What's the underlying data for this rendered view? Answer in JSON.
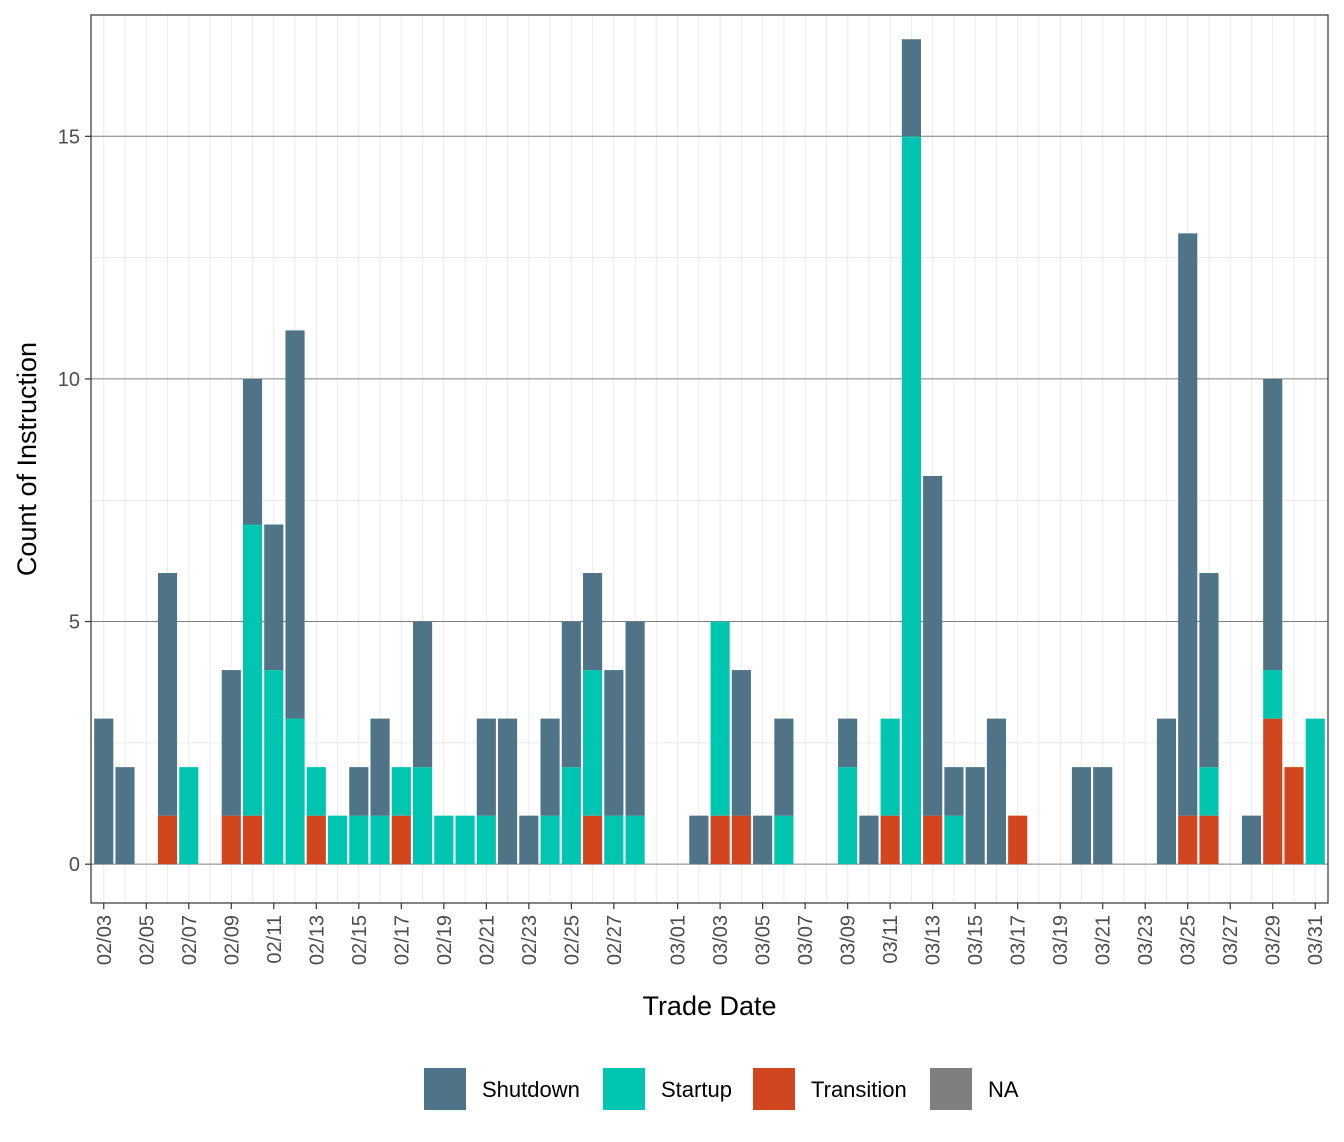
{
  "chart_data": {
    "type": "bar",
    "stacked": true,
    "xlabel": "Trade Date",
    "ylabel": "Count of Instruction",
    "ylim": [
      -0.8,
      17.5
    ],
    "y_ticks": [
      0,
      5,
      10,
      15
    ],
    "grid": true,
    "legend_position": "bottom",
    "x_tick_labels": [
      "02/03",
      "02/05",
      "02/07",
      "02/09",
      "02/11",
      "02/13",
      "02/15",
      "02/17",
      "02/19",
      "02/21",
      "02/23",
      "02/25",
      "02/27",
      "03/01",
      "03/03",
      "03/05",
      "03/07",
      "03/09",
      "03/11",
      "03/13",
      "03/15",
      "03/17",
      "03/19",
      "03/21",
      "03/23",
      "03/25",
      "03/27",
      "03/29",
      "03/31"
    ],
    "categories": [
      "02/03",
      "02/04",
      "02/05",
      "02/06",
      "02/07",
      "02/08",
      "02/09",
      "02/10",
      "02/11",
      "02/12",
      "02/13",
      "02/14",
      "02/15",
      "02/16",
      "02/17",
      "02/18",
      "02/19",
      "02/20",
      "02/21",
      "02/22",
      "02/23",
      "02/24",
      "02/25",
      "02/26",
      "02/27",
      "02/28",
      "02/29",
      "03/01",
      "03/02",
      "03/03",
      "03/04",
      "03/05",
      "03/06",
      "03/07",
      "03/08",
      "03/09",
      "03/10",
      "03/11",
      "03/12",
      "03/13",
      "03/14",
      "03/15",
      "03/16",
      "03/17",
      "03/18",
      "03/19",
      "03/20",
      "03/21",
      "03/22",
      "03/23",
      "03/24",
      "03/25",
      "03/26",
      "03/27",
      "03/28",
      "03/29",
      "03/30",
      "03/31"
    ],
    "series": [
      {
        "name": "Transition",
        "color": "#d1451f",
        "values": [
          0,
          0,
          0,
          1,
          0,
          0,
          1,
          1,
          0,
          0,
          1,
          0,
          0,
          0,
          1,
          0,
          0,
          0,
          0,
          0,
          0,
          0,
          0,
          1,
          0,
          0,
          0,
          0,
          0,
          1,
          1,
          0,
          0,
          0,
          0,
          0,
          0,
          1,
          0,
          1,
          0,
          0,
          0,
          1,
          0,
          0,
          0,
          0,
          0,
          0,
          0,
          1,
          1,
          0,
          0,
          3,
          2,
          0
        ]
      },
      {
        "name": "Startup",
        "color": "#00c5b0",
        "values": [
          0,
          0,
          0,
          0,
          2,
          0,
          0,
          6,
          4,
          3,
          1,
          1,
          1,
          1,
          1,
          2,
          1,
          1,
          1,
          0,
          0,
          1,
          2,
          3,
          1,
          1,
          0,
          0,
          0,
          4,
          0,
          0,
          1,
          0,
          0,
          2,
          0,
          2,
          15,
          0,
          1,
          0,
          0,
          0,
          0,
          0,
          0,
          0,
          0,
          0,
          0,
          0,
          1,
          0,
          0,
          1,
          0,
          3
        ]
      },
      {
        "name": "Shutdown",
        "color": "#4f7387",
        "values": [
          3,
          2,
          0,
          5,
          0,
          0,
          3,
          3,
          3,
          8,
          0,
          0,
          1,
          2,
          0,
          3,
          0,
          0,
          2,
          3,
          1,
          2,
          3,
          2,
          3,
          4,
          0,
          0,
          1,
          0,
          3,
          1,
          2,
          0,
          0,
          1,
          1,
          0,
          2,
          7,
          1,
          2,
          3,
          0,
          0,
          0,
          2,
          2,
          0,
          0,
          3,
          12,
          4,
          0,
          1,
          6,
          0,
          0
        ]
      },
      {
        "name": "NA",
        "color": "#7f7f7f",
        "values": [
          0,
          0,
          0,
          0,
          0,
          0,
          0,
          0,
          0,
          0,
          0,
          0,
          0,
          0,
          0,
          0,
          0,
          0,
          0,
          0,
          0,
          0,
          0,
          0,
          0,
          0,
          0,
          0,
          0,
          0,
          0,
          0,
          0,
          0,
          0,
          0,
          0,
          0,
          0,
          0,
          0,
          0,
          0,
          0,
          0,
          0,
          0,
          0,
          0,
          0,
          0,
          0,
          0,
          0,
          0,
          0,
          0,
          0
        ]
      }
    ],
    "legend_order": [
      "Shutdown",
      "Startup",
      "Transition",
      "NA"
    ]
  }
}
